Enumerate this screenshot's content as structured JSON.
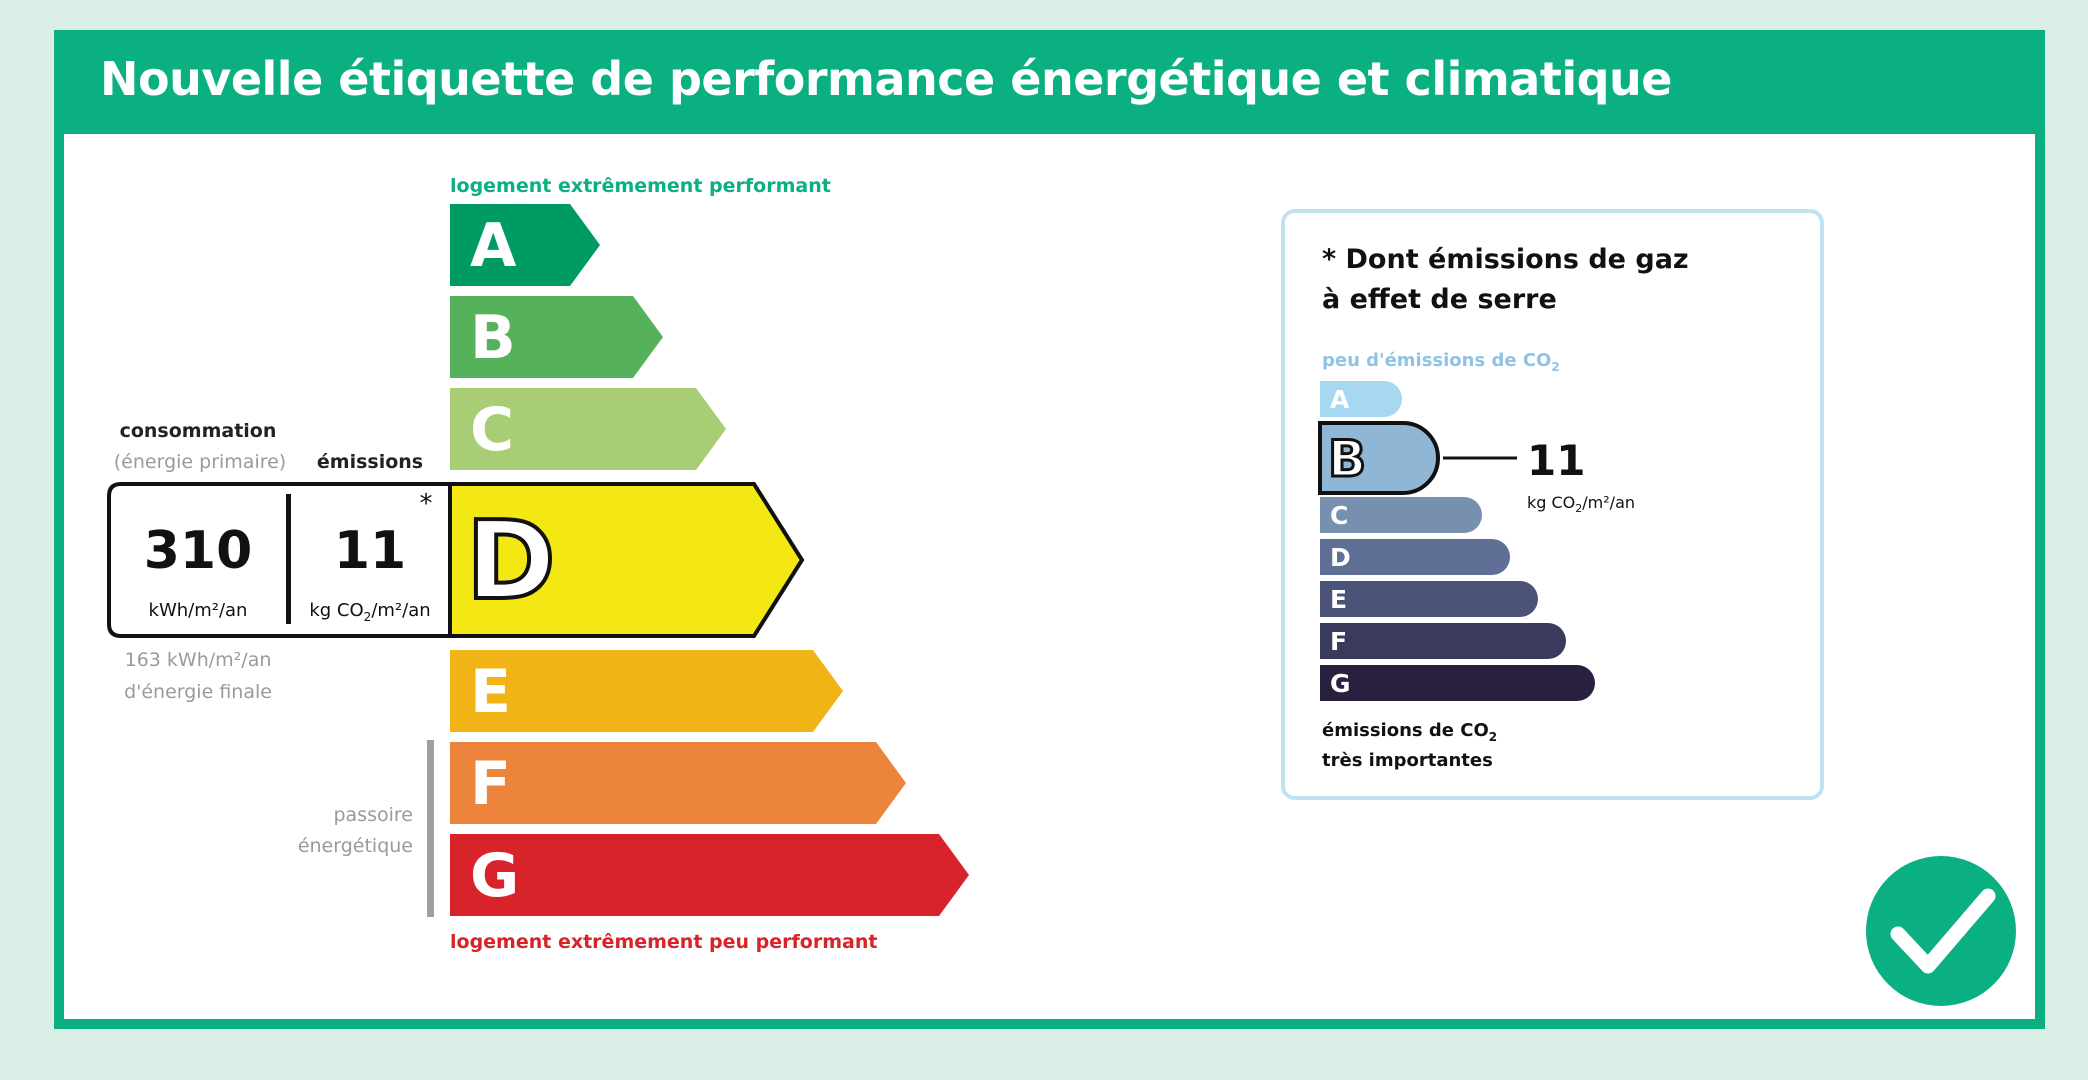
{
  "title": "Nouvelle étiquette de performance énergétique et climatique",
  "energy_scale": {
    "top_label": "logement extrêmement performant",
    "bottom_label": "logement extrêmement peu performant",
    "top_label_color": "#0aaf82",
    "bottom_label_color": "#d8232a",
    "classes": [
      {
        "letter": "A",
        "color": "#009a63"
      },
      {
        "letter": "B",
        "color": "#56b15b"
      },
      {
        "letter": "C",
        "color": "#a8cd75"
      },
      {
        "letter": "D",
        "color": "#f4e814"
      },
      {
        "letter": "E",
        "color": "#f0b417"
      },
      {
        "letter": "F",
        "color": "#ec843b"
      },
      {
        "letter": "G",
        "color": "#d8232a"
      }
    ],
    "current_class": "D",
    "passoire_label_line1": "passoire",
    "passoire_label_line2": "énergétique"
  },
  "readout": {
    "consumption_label": "consommation",
    "consumption_sublabel": "(énergie primaire)",
    "emissions_label": "émissions",
    "consumption_value": "310",
    "consumption_unit": "kWh/m²/an",
    "emissions_value": "11",
    "emissions_unit_pre": "kg CO",
    "emissions_unit_sub": "2",
    "emissions_unit_post": "/m²/an",
    "asterisk": "*",
    "final_energy_line1": "163 kWh/m²/an",
    "final_energy_line2": "d'énergie finale"
  },
  "ghg_panel": {
    "heading_line1": "* Dont émissions de gaz",
    "heading_line2": "à effet de serre",
    "top_label_pre": "peu d'émissions de CO",
    "top_label_sub": "2",
    "bottom_label_line1_pre": "émissions de CO",
    "bottom_label_line1_sub": "2",
    "bottom_label_line2": "très importantes",
    "classes": [
      {
        "letter": "A",
        "color": "#a6d8f2"
      },
      {
        "letter": "B",
        "color": "#8fb6d4"
      },
      {
        "letter": "C",
        "color": "#7890af"
      },
      {
        "letter": "D",
        "color": "#5f6f95"
      },
      {
        "letter": "E",
        "color": "#4b5478"
      },
      {
        "letter": "F",
        "color": "#3a3b5c"
      },
      {
        "letter": "G",
        "color": "#2a2040"
      }
    ],
    "current_class": "B",
    "value": "11",
    "unit_pre": "kg CO",
    "unit_sub": "2",
    "unit_post": "/m²/an",
    "border_color": "#bfe2f2"
  },
  "check_badge": {
    "icon": "checkmark-icon",
    "color": "#0aaf82"
  }
}
